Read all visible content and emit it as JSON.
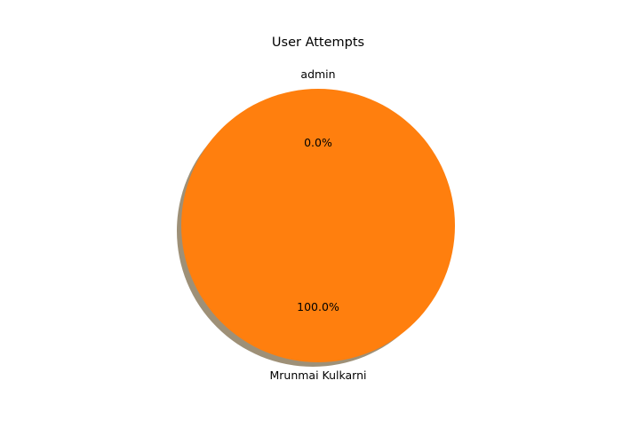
{
  "chart_data": {
    "type": "pie",
    "title": "User Attempts",
    "slices": [
      {
        "label": "admin",
        "value": 0,
        "pct_label": "0.0%",
        "color": "#1f77b4"
      },
      {
        "label": "Mrunmai Kulkarni",
        "value": 100,
        "pct_label": "100.0%",
        "color": "#ff7f0e"
      }
    ],
    "shadow": true,
    "legend": "none"
  }
}
